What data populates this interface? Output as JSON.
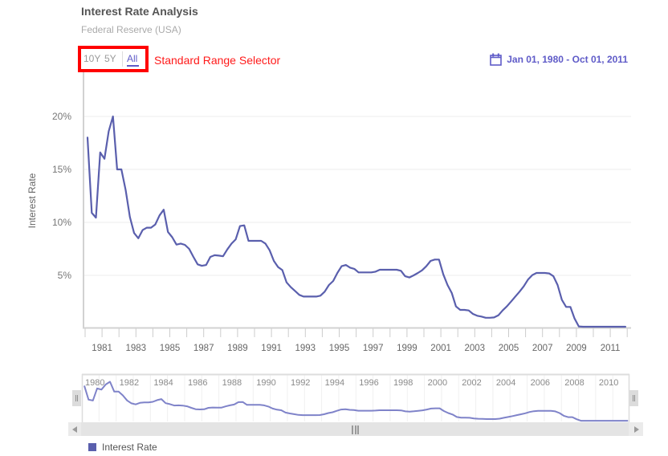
{
  "header": {
    "title": "Interest Rate Analysis",
    "subtitle": "Federal Reserve (USA)"
  },
  "range_selector": {
    "buttons": [
      {
        "label": "10Y",
        "active": false
      },
      {
        "label": "5Y",
        "active": false
      },
      {
        "label": "All",
        "active": true
      }
    ],
    "annotation": "Standard Range Selector",
    "highlight_color": "#ff0000"
  },
  "date_range": {
    "icon": "calendar-icon",
    "text": "Jan 01, 1980 - Oct 01, 2011"
  },
  "colors": {
    "accent": "#5f5bc8",
    "series": "#5a5fad",
    "navigator_series": "#7f83c9",
    "annotation": "#ff1a1a"
  },
  "chart_data": {
    "type": "line",
    "title": "Interest Rate Analysis",
    "subtitle": "Federal Reserve (USA)",
    "xlabel": "",
    "ylabel": "Interest Rate",
    "x": [
      "1980-01",
      "1980-04",
      "1980-07",
      "1980-10",
      "1981-01",
      "1981-04",
      "1981-07",
      "1981-10",
      "1982-01",
      "1982-04",
      "1982-07",
      "1982-10",
      "1983-01",
      "1983-04",
      "1983-07",
      "1983-10",
      "1984-01",
      "1984-04",
      "1984-07",
      "1984-10",
      "1985-01",
      "1985-04",
      "1985-07",
      "1985-10",
      "1986-01",
      "1986-04",
      "1986-07",
      "1986-10",
      "1987-01",
      "1987-04",
      "1987-07",
      "1987-10",
      "1988-01",
      "1988-04",
      "1988-07",
      "1988-10",
      "1989-01",
      "1989-04",
      "1989-07",
      "1989-10",
      "1990-01",
      "1990-04",
      "1990-07",
      "1990-10",
      "1991-01",
      "1991-04",
      "1991-07",
      "1991-10",
      "1992-01",
      "1992-04",
      "1992-07",
      "1992-10",
      "1993-01",
      "1993-04",
      "1993-07",
      "1993-10",
      "1994-01",
      "1994-04",
      "1994-07",
      "1994-10",
      "1995-01",
      "1995-04",
      "1995-07",
      "1995-10",
      "1996-01",
      "1996-04",
      "1996-07",
      "1996-10",
      "1997-01",
      "1997-04",
      "1997-07",
      "1997-10",
      "1998-01",
      "1998-04",
      "1998-07",
      "1998-10",
      "1999-01",
      "1999-04",
      "1999-07",
      "1999-10",
      "2000-01",
      "2000-04",
      "2000-07",
      "2000-10",
      "2001-01",
      "2001-04",
      "2001-07",
      "2001-10",
      "2002-01",
      "2002-04",
      "2002-07",
      "2002-10",
      "2003-01",
      "2003-04",
      "2003-07",
      "2003-10",
      "2004-01",
      "2004-04",
      "2004-07",
      "2004-10",
      "2005-01",
      "2005-04",
      "2005-07",
      "2005-10",
      "2006-01",
      "2006-04",
      "2006-07",
      "2006-10",
      "2007-01",
      "2007-04",
      "2007-07",
      "2007-10",
      "2008-01",
      "2008-04",
      "2008-07",
      "2008-10",
      "2009-01",
      "2009-04",
      "2009-07",
      "2009-10",
      "2010-01",
      "2010-04",
      "2010-07",
      "2010-10",
      "2011-01",
      "2011-04",
      "2011-07",
      "2011-10"
    ],
    "series": [
      {
        "name": "Interest Rate",
        "color": "#5a5fad",
        "values": [
          18.0,
          10.9,
          10.45,
          16.6,
          16.0,
          18.6,
          20.0,
          15.0,
          15.0,
          13.05,
          10.5,
          9.0,
          8.5,
          9.27,
          9.5,
          9.5,
          9.8,
          10.66,
          11.2,
          9.1,
          8.6,
          7.9,
          8.0,
          7.88,
          7.5,
          6.74,
          6.04,
          5.9,
          5.98,
          6.74,
          6.9,
          6.86,
          6.8,
          7.45,
          8.0,
          8.4,
          9.65,
          9.72,
          8.26,
          8.26,
          8.26,
          8.26,
          8.0,
          7.37,
          6.36,
          5.78,
          5.5,
          4.34,
          3.89,
          3.53,
          3.16,
          3.0,
          3.0,
          3.0,
          3.0,
          3.08,
          3.46,
          4.09,
          4.47,
          5.23,
          5.86,
          5.98,
          5.73,
          5.61,
          5.28,
          5.28,
          5.28,
          5.28,
          5.35,
          5.53,
          5.53,
          5.53,
          5.53,
          5.53,
          5.43,
          4.92,
          4.8,
          5.0,
          5.23,
          5.48,
          5.86,
          6.36,
          6.49,
          6.49,
          5.1,
          4.09,
          3.33,
          2.07,
          1.74,
          1.74,
          1.69,
          1.36,
          1.19,
          1.11,
          1.0,
          1.0,
          1.03,
          1.23,
          1.69,
          2.07,
          2.52,
          3.0,
          3.46,
          3.96,
          4.6,
          5.02,
          5.23,
          5.23,
          5.23,
          5.18,
          4.92,
          4.09,
          2.7,
          2.02,
          2.02,
          0.93,
          0.18,
          0.15,
          0.15,
          0.15,
          0.15,
          0.15,
          0.15,
          0.15,
          0.15,
          0.15,
          0.15,
          0.15
        ]
      }
    ],
    "ylim": [
      0,
      24
    ],
    "yticks": [
      5,
      10,
      15,
      20
    ],
    "ytick_labels": [
      "5%",
      "10%",
      "15%",
      "20%"
    ],
    "xlim": [
      "1980-01",
      "2012-01"
    ],
    "xtick_labels": [
      "1981",
      "1983",
      "1985",
      "1987",
      "1989",
      "1991",
      "1993",
      "1995",
      "1997",
      "1999",
      "2001",
      "2003",
      "2005",
      "2007",
      "2009",
      "2011"
    ],
    "grid": true,
    "legend": "bottom-left"
  },
  "navigator": {
    "labels": [
      "1980",
      "1982",
      "1984",
      "1986",
      "1988",
      "1990",
      "1992",
      "1994",
      "1996",
      "1998",
      "2000",
      "2002",
      "2004",
      "2006",
      "2008",
      "2010"
    ],
    "left_handle_icon": "grip-icon",
    "right_handle_icon": "grip-icon"
  },
  "scrollbar": {
    "left_icon": "arrow-left-icon",
    "right_icon": "arrow-right-icon",
    "grip_icon": "grip-icon"
  },
  "legend": {
    "items": [
      {
        "label": "Interest Rate",
        "color": "#5a5fad"
      }
    ]
  }
}
